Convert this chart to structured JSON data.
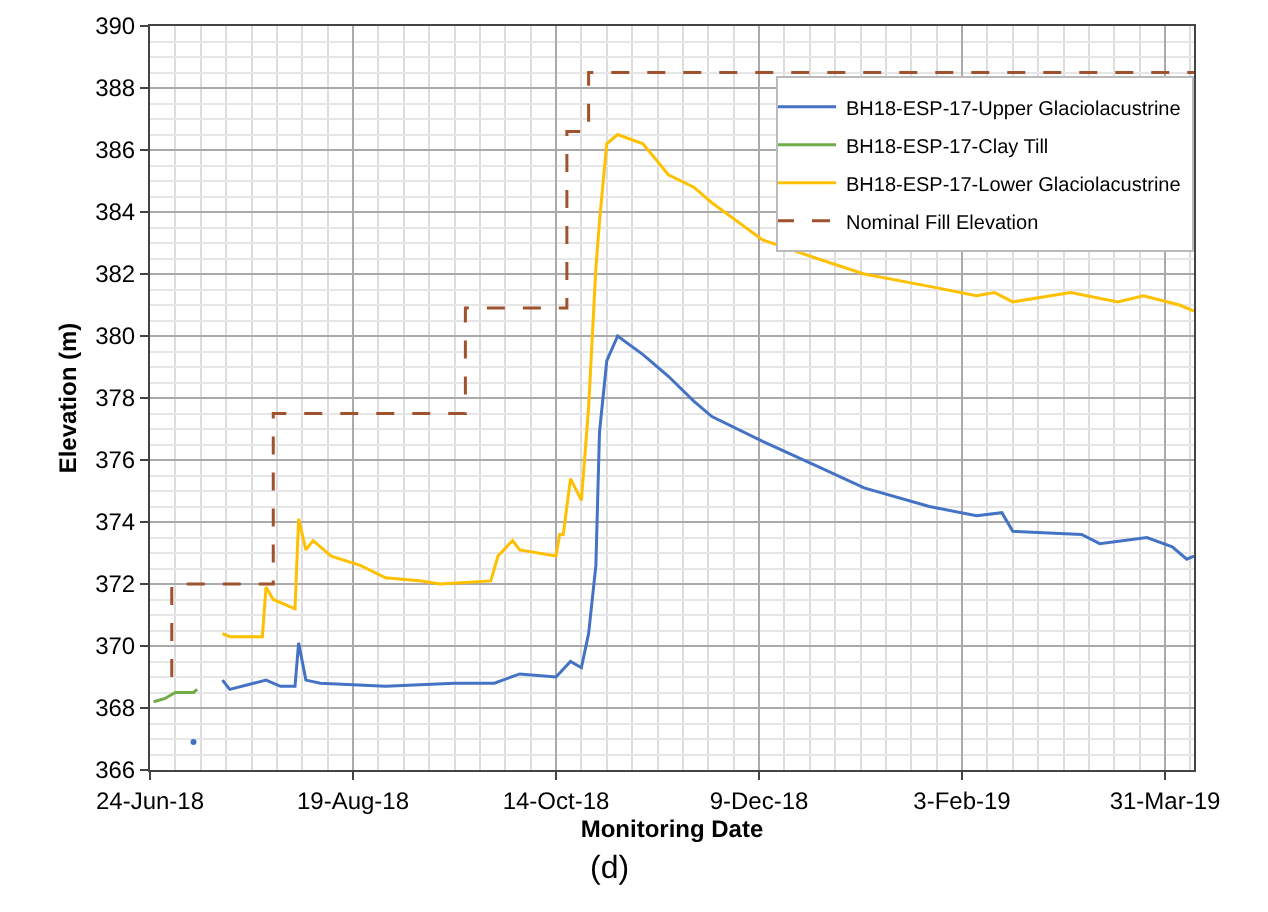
{
  "chart_data": {
    "type": "line",
    "xlabel": "Monitoring Date",
    "ylabel": "Elevation (m)",
    "annotations": [
      "(d)"
    ],
    "xlim": [
      "2018-06-24",
      "2019-04-08"
    ],
    "xticks": [
      {
        "value": "2018-06-24",
        "label": "24-Jun-18"
      },
      {
        "value": "2018-08-19",
        "label": "19-Aug-18"
      },
      {
        "value": "2018-10-14",
        "label": "14-Oct-18"
      },
      {
        "value": "2018-12-09",
        "label": "9-Dec-18"
      },
      {
        "value": "2019-02-03",
        "label": "3-Feb-19"
      },
      {
        "value": "2019-03-31",
        "label": "31-Mar-19"
      }
    ],
    "ylim": [
      366,
      390
    ],
    "yticks": [
      366,
      368,
      370,
      372,
      374,
      376,
      378,
      380,
      382,
      384,
      386,
      388,
      390
    ],
    "grid": true,
    "legend": "top right",
    "marker": "none",
    "series": [
      {
        "name": "BH18-ESP-17-Upper Glaciolacustrine",
        "color": "#4472c4",
        "line_style": "solid",
        "x": [
          "2018-07-14",
          "2018-07-16",
          "2018-07-26",
          "2018-07-30",
          "2018-08-03",
          "2018-08-04",
          "2018-08-06",
          "2018-08-10",
          "2018-08-28",
          "2018-09-16",
          "2018-09-27",
          "2018-10-04",
          "2018-10-14",
          "2018-10-18",
          "2018-10-21",
          "2018-10-23",
          "2018-10-25",
          "2018-10-26",
          "2018-10-28",
          "2018-10-31",
          "2018-11-07",
          "2018-11-14",
          "2018-11-21",
          "2018-11-26",
          "2018-12-10",
          "2018-12-25",
          "2019-01-07",
          "2019-01-25",
          "2019-02-07",
          "2019-02-14",
          "2019-02-17",
          "2019-03-08",
          "2019-03-13",
          "2019-03-26",
          "2019-04-02",
          "2019-04-06",
          "2019-04-08"
        ],
        "values": [
          368.9,
          368.6,
          368.9,
          368.7,
          368.7,
          370.1,
          368.9,
          368.8,
          368.7,
          368.8,
          368.8,
          369.1,
          369.0,
          369.5,
          369.3,
          370.4,
          372.6,
          376.9,
          379.2,
          380.0,
          379.4,
          378.7,
          377.9,
          377.4,
          376.6,
          375.8,
          375.1,
          374.5,
          374.2,
          374.3,
          373.7,
          373.6,
          373.3,
          373.5,
          373.2,
          372.8,
          372.9
        ]
      },
      {
        "name": "BH18-ESP-17-Clay Till",
        "color": "#70ad47",
        "line_style": "solid",
        "x": [
          "2018-06-25",
          "2018-06-28",
          "2018-07-01",
          "2018-07-06",
          "2018-07-07"
        ],
        "values": [
          368.2,
          368.3,
          368.5,
          368.5,
          368.6
        ]
      },
      {
        "name": "BH18-ESP-17-Lower Glaciolacustrine",
        "color": "#ffc000",
        "line_style": "solid",
        "x": [
          "2018-07-14",
          "2018-07-16",
          "2018-07-25",
          "2018-07-26",
          "2018-07-28",
          "2018-08-03",
          "2018-08-04",
          "2018-08-06",
          "2018-08-08",
          "2018-08-13",
          "2018-08-21",
          "2018-08-28",
          "2018-09-07",
          "2018-09-12",
          "2018-09-26",
          "2018-09-28",
          "2018-10-02",
          "2018-10-04",
          "2018-10-14",
          "2018-10-15",
          "2018-10-16",
          "2018-10-18",
          "2018-10-21",
          "2018-10-23",
          "2018-10-25",
          "2018-10-26",
          "2018-10-28",
          "2018-10-31",
          "2018-11-07",
          "2018-11-14",
          "2018-11-21",
          "2018-11-26",
          "2018-12-10",
          "2018-12-25",
          "2019-01-07",
          "2019-01-25",
          "2019-02-07",
          "2019-02-12",
          "2019-02-17",
          "2019-03-05",
          "2019-03-18",
          "2019-03-25",
          "2019-04-04",
          "2019-04-08"
        ],
        "values": [
          370.4,
          370.3,
          370.3,
          371.9,
          371.5,
          371.2,
          374.1,
          373.1,
          373.4,
          372.9,
          372.6,
          372.2,
          372.1,
          372.0,
          372.1,
          372.9,
          373.4,
          373.1,
          372.9,
          373.6,
          373.6,
          375.4,
          374.7,
          377.7,
          382.2,
          383.7,
          386.2,
          386.5,
          386.2,
          385.2,
          384.8,
          384.3,
          383.1,
          382.5,
          382.0,
          381.6,
          381.3,
          381.4,
          381.1,
          381.4,
          381.1,
          381.3,
          381.0,
          380.8
        ]
      },
      {
        "name": "Nominal Fill Elevation",
        "type": "step",
        "color": "#a0522d",
        "line_style": "dashed",
        "x": [
          "2018-06-30",
          "2018-06-30",
          "2018-07-28",
          "2018-09-19",
          "2018-10-17",
          "2018-10-23",
          "2019-04-08"
        ],
        "values": [
          369.0,
          372.0,
          377.5,
          380.9,
          386.6,
          388.5,
          388.5
        ]
      },
      {
        "type": "scatter",
        "color": "#4472c4",
        "x": [
          "2018-07-06"
        ],
        "values": [
          366.9
        ]
      }
    ]
  }
}
